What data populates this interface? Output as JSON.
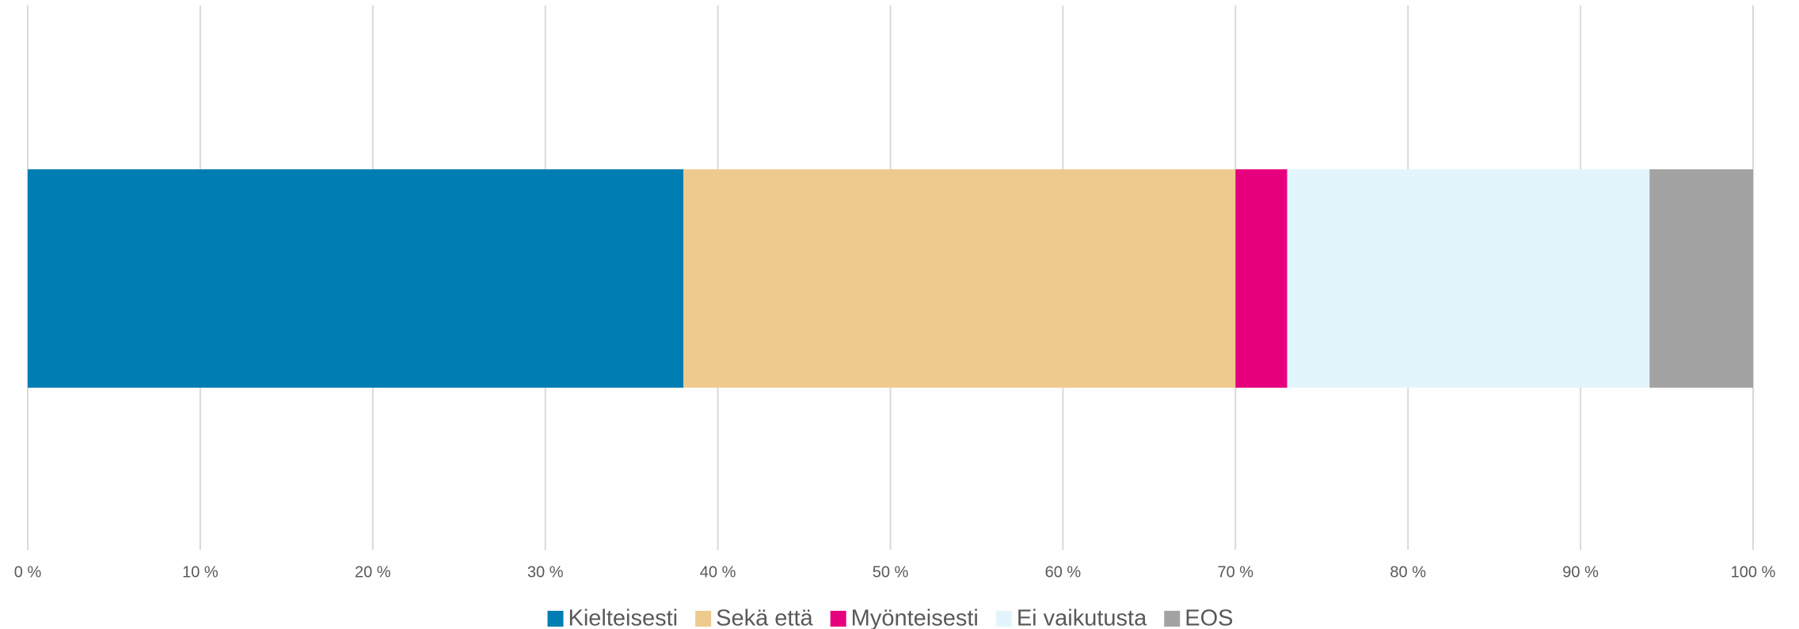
{
  "chart_data": {
    "type": "stacked_bar_horizontal",
    "categories": [
      null
    ],
    "series": [
      {
        "name": "Kielteisesti",
        "color": "#007db3",
        "values": [
          38
        ]
      },
      {
        "name": "Sekä että",
        "color": "#eeca8e",
        "values": [
          32
        ]
      },
      {
        "name": "Myönteisesti",
        "color": "#e6007e",
        "values": [
          3
        ]
      },
      {
        "name": "Ei vaikutusta",
        "color": "#e3f5fc",
        "values": [
          21
        ]
      },
      {
        "name": "EOS",
        "color": "#a3a3a3",
        "values": [
          6
        ]
      }
    ],
    "xlim": [
      0,
      100
    ],
    "xticks": [
      {
        "value": 0,
        "label": "0 %"
      },
      {
        "value": 10,
        "label": "10 %"
      },
      {
        "value": 20,
        "label": "20 %"
      },
      {
        "value": 30,
        "label": "30 %"
      },
      {
        "value": 40,
        "label": "40 %"
      },
      {
        "value": 50,
        "label": "50 %"
      },
      {
        "value": 60,
        "label": "60 %"
      },
      {
        "value": 70,
        "label": "70 %"
      },
      {
        "value": 80,
        "label": "80 %"
      },
      {
        "value": 90,
        "label": "90 %"
      },
      {
        "value": 100,
        "label": "100 %"
      }
    ],
    "grid": true,
    "legend": "bottom"
  }
}
